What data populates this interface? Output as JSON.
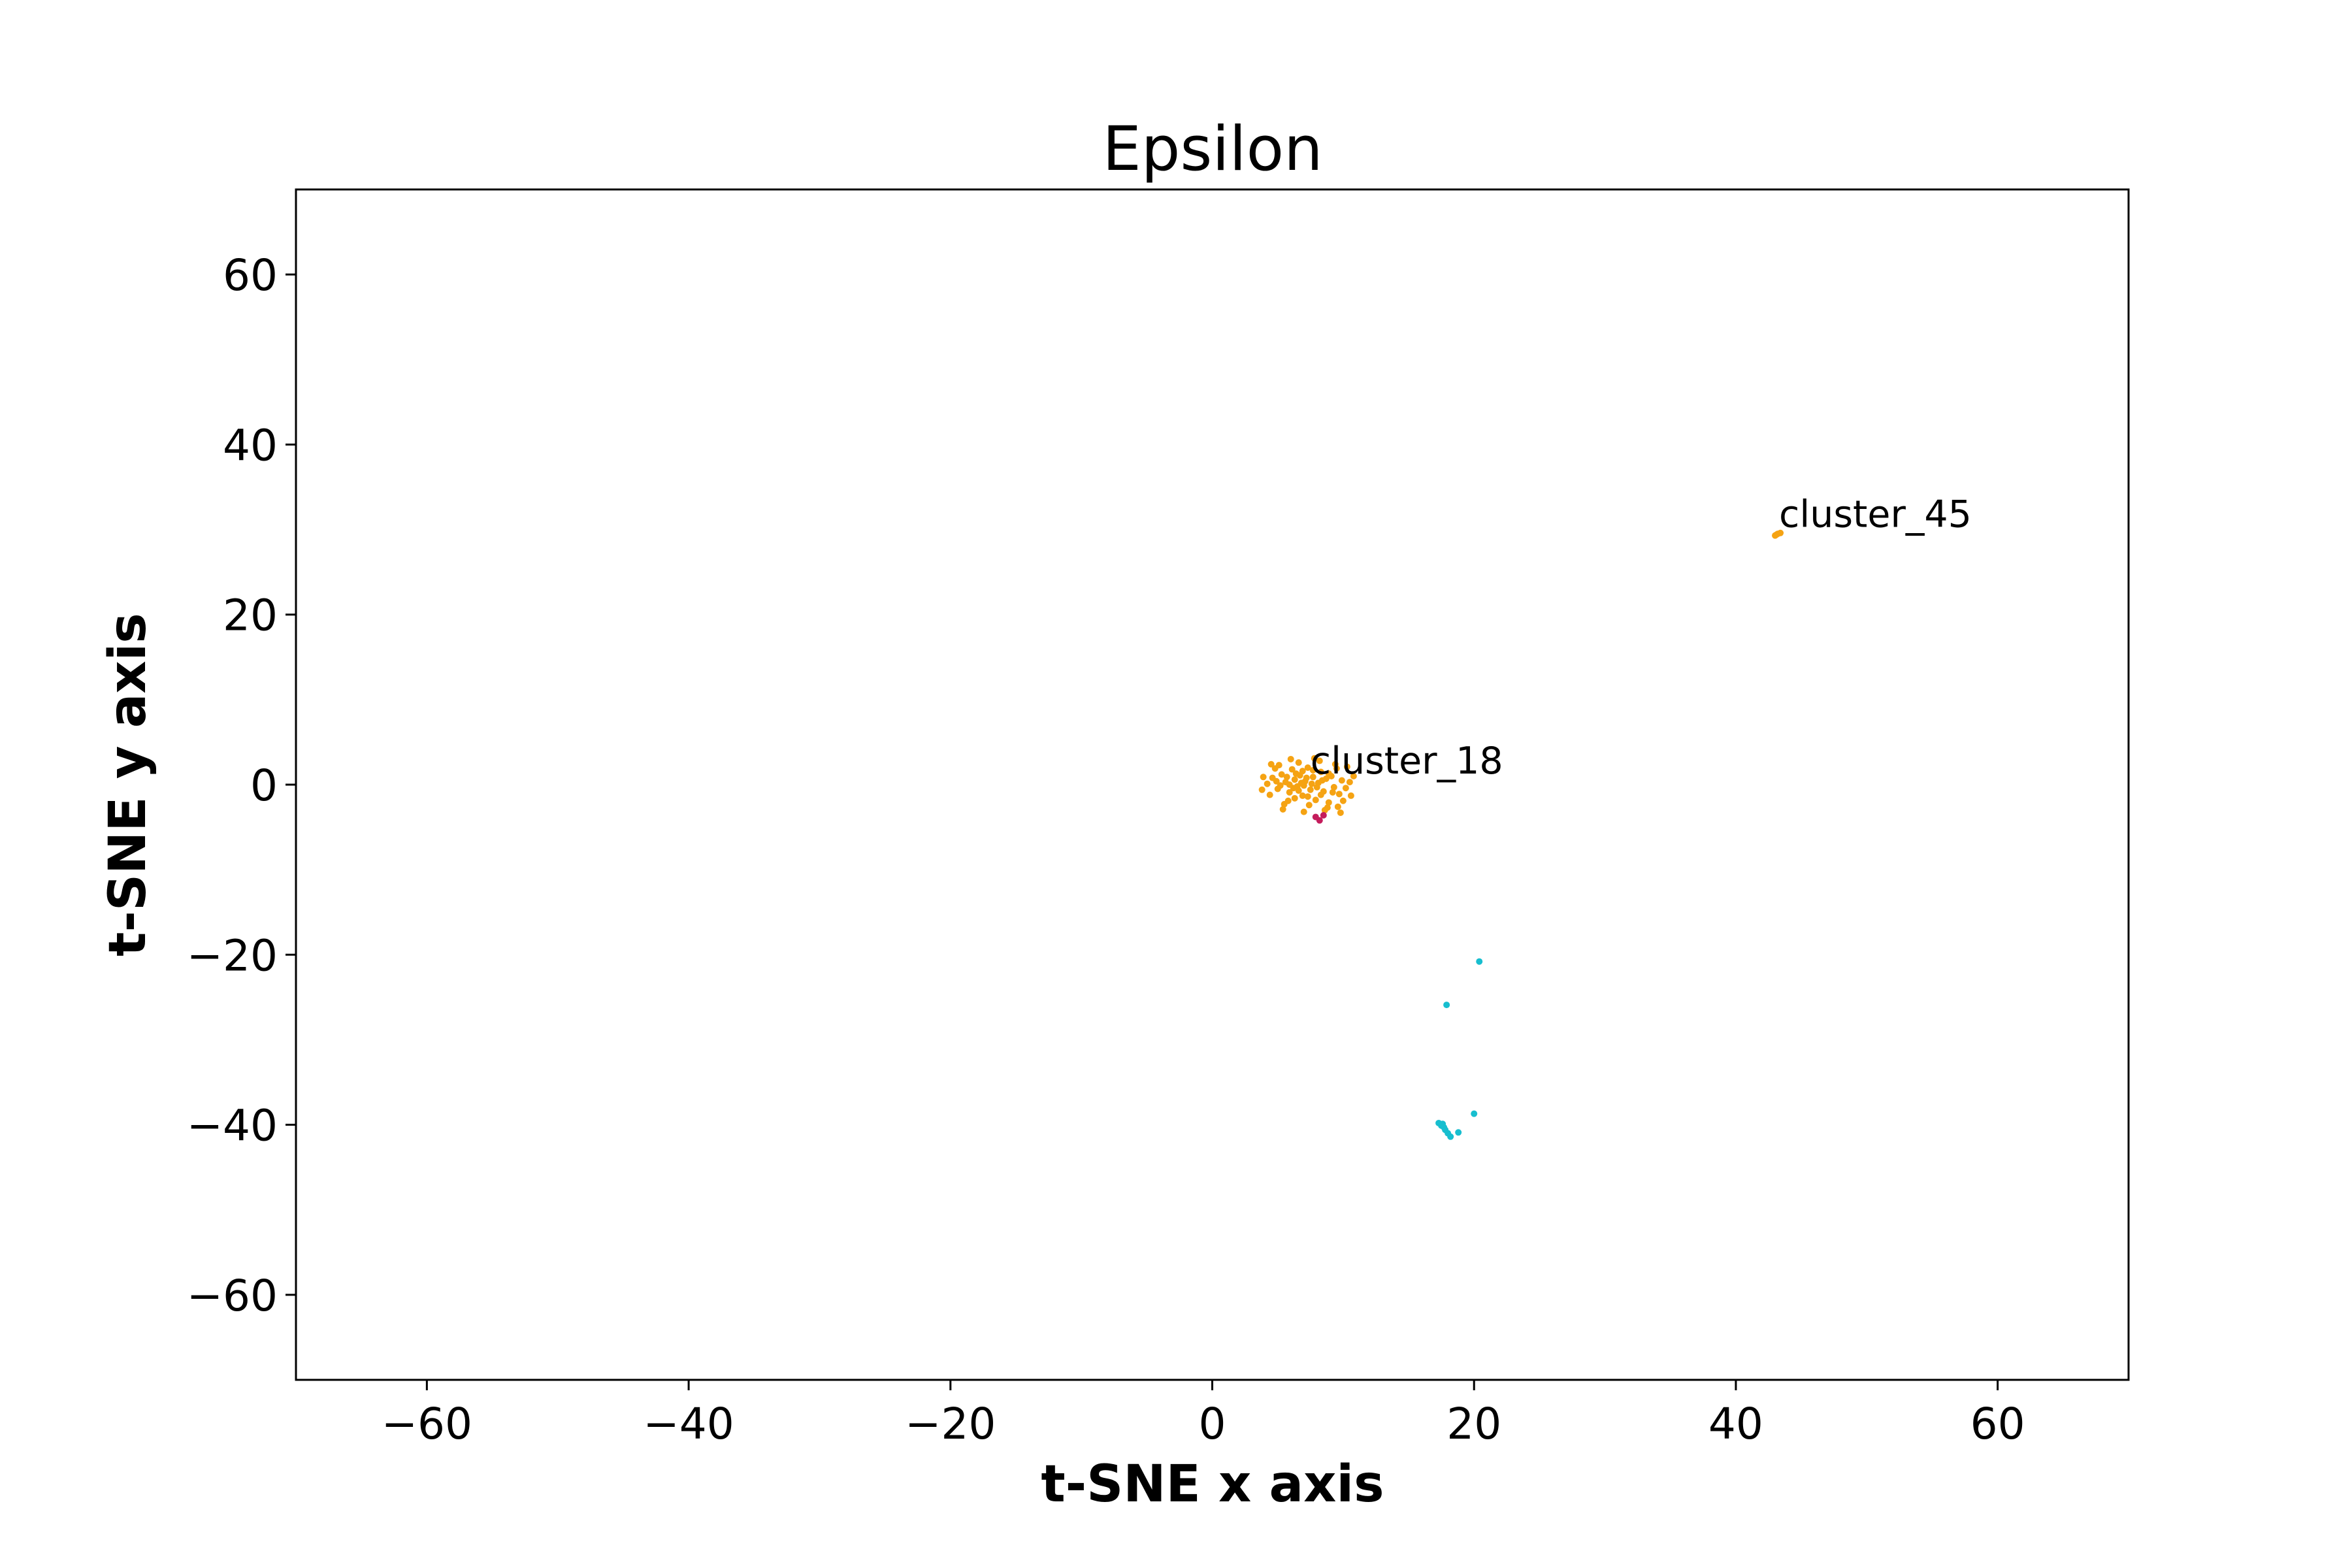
{
  "chart_data": {
    "type": "scatter",
    "title": "Epsilon",
    "xlabel": "t-SNE x axis",
    "ylabel": "t-SNE y axis",
    "xlim": [
      -70,
      70
    ],
    "ylim": [
      -70,
      70
    ],
    "xticks": [
      -60,
      -40,
      -20,
      0,
      20,
      40,
      60
    ],
    "yticks": [
      -60,
      -40,
      -20,
      0,
      20,
      40,
      60
    ],
    "xtick_labels": [
      "−60",
      "−40",
      "−20",
      "0",
      "20",
      "40",
      "60"
    ],
    "ytick_labels": [
      "−60",
      "−40",
      "−20",
      "0",
      "20",
      "40",
      "60"
    ],
    "grid": false,
    "series": [
      {
        "color": "#f5a313",
        "points": [
          [
            4.2,
            0.1
          ],
          [
            4.6,
            0.8
          ],
          [
            5.0,
            -0.5
          ],
          [
            5.3,
            1.2
          ],
          [
            5.6,
            0.3
          ],
          [
            5.9,
            -0.9
          ],
          [
            6.1,
            1.8
          ],
          [
            6.3,
            0.6
          ],
          [
            6.5,
            -0.2
          ],
          [
            6.7,
            1.1
          ],
          [
            6.9,
            -1.3
          ],
          [
            7.1,
            0.4
          ],
          [
            7.3,
            2.0
          ],
          [
            7.5,
            -0.6
          ],
          [
            7.7,
            0.9
          ],
          [
            7.9,
            -1.8
          ],
          [
            8.1,
            0.2
          ],
          [
            8.3,
            1.5
          ],
          [
            8.5,
            -0.8
          ],
          [
            8.7,
            0.7
          ],
          [
            8.9,
            -2.1
          ],
          [
            9.1,
            1.0
          ],
          [
            9.3,
            -0.3
          ],
          [
            9.5,
            1.9
          ],
          [
            9.7,
            -1.1
          ],
          [
            9.9,
            0.5
          ],
          [
            10.2,
            -0.4
          ],
          [
            10.5,
            0.3
          ],
          [
            5.1,
            2.3
          ],
          [
            5.8,
            -1.9
          ],
          [
            6.6,
            2.6
          ],
          [
            7.4,
            -2.4
          ],
          [
            8.2,
            2.8
          ],
          [
            8.8,
            -2.7
          ],
          [
            9.4,
            2.4
          ],
          [
            10.0,
            -1.9
          ],
          [
            4.4,
            -1.2
          ],
          [
            4.8,
            1.9
          ],
          [
            5.5,
            -2.3
          ],
          [
            6.2,
            -0.4
          ],
          [
            6.8,
            0.2
          ],
          [
            7.0,
            -0.1
          ],
          [
            7.2,
            0.8
          ],
          [
            7.6,
            0.1
          ],
          [
            8.0,
            -0.3
          ],
          [
            8.4,
            0.5
          ],
          [
            6.4,
            1.3
          ],
          [
            5.7,
            0.9
          ],
          [
            5.2,
            -0.1
          ],
          [
            4.9,
            0.4
          ],
          [
            9.6,
            -2.6
          ],
          [
            9.8,
            -3.3
          ],
          [
            3.9,
            0.9
          ],
          [
            3.8,
            -0.6
          ],
          [
            10.8,
            1.0
          ],
          [
            10.6,
            -1.3
          ],
          [
            6.0,
            3.0
          ],
          [
            7.8,
            3.1
          ],
          [
            8.6,
            -3.0
          ],
          [
            5.4,
            -2.9
          ],
          [
            7.0,
            -3.2
          ],
          [
            6.9,
            1.6
          ],
          [
            7.3,
            -1.4
          ],
          [
            8.3,
            -1.2
          ],
          [
            5.9,
            0.0
          ],
          [
            6.6,
            -0.7
          ],
          [
            8.9,
            1.3
          ],
          [
            9.2,
            -0.9
          ],
          [
            4.5,
            2.4
          ],
          [
            10.3,
            2.1
          ],
          [
            6.3,
            -1.6
          ],
          [
            7.7,
            1.7
          ]
        ]
      },
      {
        "color": "#f5a313",
        "points": [
          [
            43.0,
            29.3
          ],
          [
            43.2,
            29.5
          ],
          [
            43.4,
            29.6
          ],
          [
            43.1,
            29.4
          ]
        ]
      },
      {
        "color": "#c41c5c",
        "points": [
          [
            7.9,
            -3.8
          ],
          [
            8.2,
            -4.2
          ],
          [
            8.5,
            -3.6
          ]
        ]
      },
      {
        "color": "#17becf",
        "points": [
          [
            20.4,
            -20.8
          ],
          [
            17.9,
            -25.9
          ],
          [
            20.0,
            -38.7
          ],
          [
            17.3,
            -39.8
          ],
          [
            17.5,
            -40.1
          ],
          [
            17.7,
            -40.3
          ],
          [
            17.8,
            -40.6
          ],
          [
            18.0,
            -41.0
          ],
          [
            18.2,
            -41.4
          ],
          [
            18.8,
            -40.9
          ],
          [
            17.6,
            -39.9
          ]
        ]
      }
    ],
    "annotations": [
      {
        "text": "cluster_18",
        "x": 7.5,
        "y": 1.3
      },
      {
        "text": "cluster_45",
        "x": 43.3,
        "y": 30.3
      }
    ]
  }
}
